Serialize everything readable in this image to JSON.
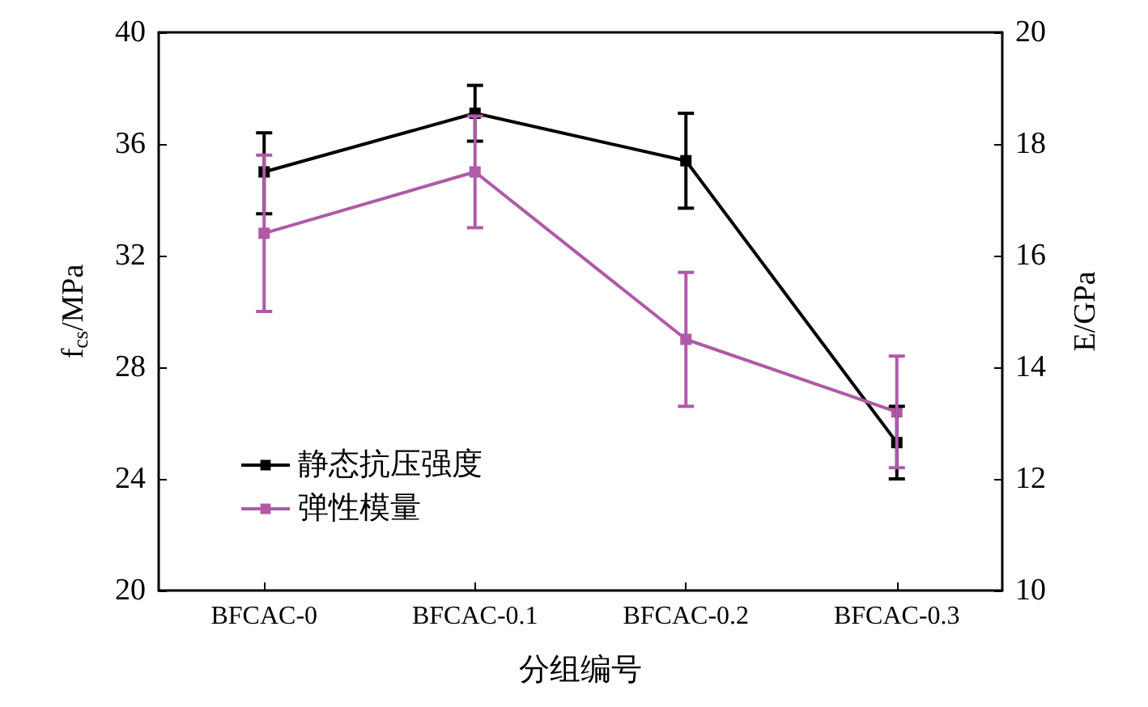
{
  "chart_data": {
    "type": "line",
    "xlabel": "分组编号",
    "ylabel": "f$_{cs}$/MPa",
    "y2label": "E/GPa",
    "categories": [
      "BFCAC-0",
      "BFCAC-0.1",
      "BFCAC-0.2",
      "BFCAC-0.3"
    ],
    "series": [
      {
        "name": "静态抗压强度",
        "color": "#000000",
        "values": [
          35.0,
          37.1,
          35.4,
          25.3
        ],
        "errors": [
          [
            33.5,
            36.4
          ],
          [
            36.1,
            38.1
          ],
          [
            33.7,
            37.1
          ],
          [
            24.0,
            26.6
          ]
        ]
      },
      {
        "name": "弹性模量",
        "color": "#b05aa8",
        "axis": "y2",
        "values": [
          16.4,
          17.5,
          14.5,
          13.2
        ],
        "errors": [
          [
            15.0,
            17.8
          ],
          [
            16.5,
            18.5
          ],
          [
            13.3,
            15.7
          ],
          [
            12.2,
            14.2
          ]
        ]
      }
    ],
    "ylim": [
      20,
      40
    ],
    "yticks": [
      20,
      24,
      28,
      32,
      36,
      40
    ],
    "y2lim": [
      10,
      20
    ],
    "y2ticks": [
      10,
      12,
      14,
      16,
      18,
      20
    ],
    "legend": "bottom left",
    "marker": "square",
    "line_style": "solid",
    "grid": false
  }
}
